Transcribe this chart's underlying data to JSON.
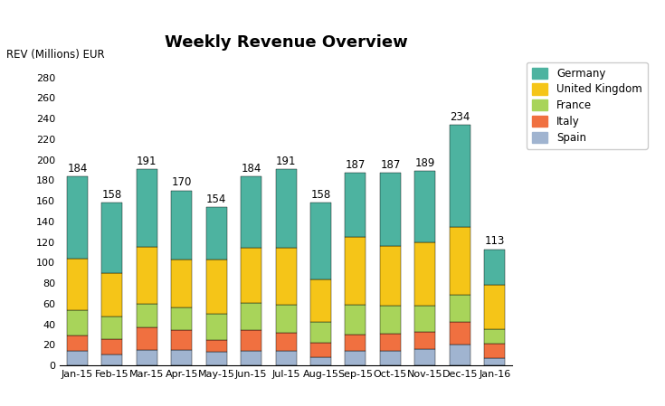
{
  "title": "Weekly Revenue Overview",
  "ylabel": "REV (Millions) EUR",
  "categories": [
    "Jan-15",
    "Feb-15",
    "Mar-15",
    "Apr-15",
    "May-15",
    "Jun-15",
    "Jul-15",
    "Aug-15",
    "Sep-15",
    "Oct-15",
    "Nov-15",
    "Dec-15",
    "Jan-16"
  ],
  "totals": [
    184,
    158,
    191,
    170,
    154,
    184,
    191,
    158,
    187,
    187,
    189,
    234,
    113
  ],
  "series": {
    "Spain": [
      14,
      11,
      15,
      15,
      13,
      14,
      14,
      8,
      14,
      14,
      16,
      20,
      7
    ],
    "Italy": [
      15,
      15,
      22,
      19,
      12,
      20,
      18,
      14,
      16,
      17,
      17,
      22,
      14
    ],
    "France": [
      25,
      22,
      23,
      22,
      25,
      27,
      27,
      20,
      29,
      27,
      25,
      27,
      14
    ],
    "United Kingdom": [
      50,
      42,
      55,
      47,
      53,
      53,
      55,
      42,
      66,
      58,
      62,
      66,
      43
    ],
    "Germany": [
      80,
      68,
      76,
      67,
      51,
      70,
      77,
      74,
      62,
      71,
      69,
      99,
      35
    ]
  },
  "colors": {
    "Germany": "#4db3a0",
    "United Kingdom": "#f5c518",
    "France": "#a8d45a",
    "Italy": "#f07040",
    "Spain": "#a0b4d0"
  },
  "ylim": [
    0,
    300
  ],
  "yticks": [
    0,
    20,
    40,
    60,
    80,
    100,
    120,
    140,
    160,
    180,
    200,
    220,
    240,
    260,
    280
  ],
  "legend_order": [
    "Germany",
    "United Kingdom",
    "France",
    "Italy",
    "Spain"
  ],
  "background_color": "#ffffff",
  "title_fontsize": 13,
  "label_fontsize": 8.5,
  "tick_fontsize": 8
}
